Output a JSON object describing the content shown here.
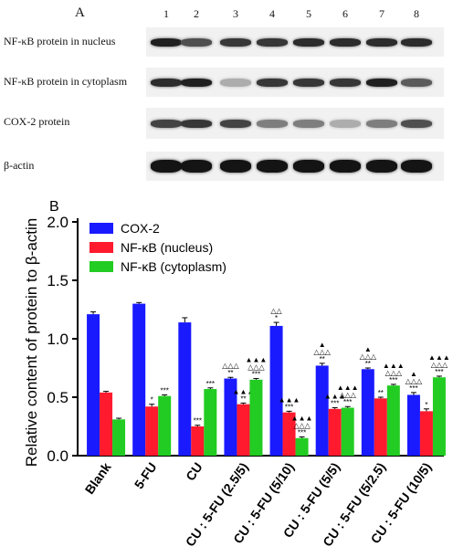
{
  "panelA": {
    "letter": "A",
    "lanes": [
      "1",
      "2",
      "3",
      "4",
      "5",
      "6",
      "7",
      "8"
    ],
    "rows": [
      {
        "label": "NF-κB protein in nucleus",
        "intensity": [
          0.95,
          0.75,
          0.85,
          0.85,
          0.9,
          0.9,
          0.9,
          0.9
        ]
      },
      {
        "label": "NF-κB protein in cytoplasm",
        "intensity": [
          0.9,
          0.95,
          0.35,
          0.85,
          0.85,
          0.85,
          0.95,
          0.7
        ]
      },
      {
        "label": "COX-2 protein",
        "intensity": [
          0.8,
          0.85,
          0.8,
          0.55,
          0.55,
          0.35,
          0.55,
          0.75
        ]
      },
      {
        "label": "β-actin",
        "intensity": [
          1,
          1,
          1,
          1,
          1,
          1,
          1,
          1
        ]
      }
    ]
  },
  "chart_data": {
    "panel_letter": "B",
    "type": "bar",
    "ylabel": "Relative content of protein to β-actin",
    "ylim": [
      0.0,
      2.0
    ],
    "yticks": [
      "0.0",
      "0.5",
      "1.0",
      "1.5",
      "2.0"
    ],
    "categories": [
      "Blank",
      "5-FU",
      "CU",
      "CU : 5-FU (2.5/5)",
      "CU : 5-FU (5/10)",
      "CU : 5-FU (5/5)",
      "CU : 5-FU (5/2.5)",
      "CU : 5-FU (10/5)"
    ],
    "legend_position": "top-left",
    "series": [
      {
        "name": "COX-2",
        "color": "#1a1aff",
        "values": [
          1.21,
          1.3,
          1.14,
          0.66,
          1.11,
          0.77,
          0.74,
          0.52
        ],
        "errors": [
          0.02,
          0.01,
          0.04,
          0.01,
          0.03,
          0.02,
          0.01,
          0.02
        ],
        "annotations": [
          [],
          [],
          [],
          [
            "△△△",
            "**"
          ],
          [
            "△△",
            "*"
          ],
          [
            "▲",
            "△△△",
            "**"
          ],
          [
            "▲",
            "△△△",
            "**"
          ],
          [
            "▲",
            "△△△",
            "***"
          ]
        ]
      },
      {
        "name": "NF-κB (nucleus)",
        "color": "#ff1a2e",
        "values": [
          0.54,
          0.42,
          0.25,
          0.44,
          0.37,
          0.4,
          0.49,
          0.38
        ],
        "errors": [
          0.01,
          0.02,
          0.01,
          0.01,
          0.01,
          0.01,
          0.01,
          0.02
        ],
        "annotations": [
          [],
          [
            "*"
          ],
          [
            "***"
          ],
          [
            "▲▲▲",
            "**"
          ],
          [
            "▲▲▲",
            "***"
          ],
          [
            "▲▲▲",
            "***"
          ],
          [
            "**"
          ],
          [
            "*"
          ]
        ]
      },
      {
        "name": "NF-κB (cytoplasm)",
        "color": "#22cc22",
        "values": [
          0.31,
          0.51,
          0.57,
          0.65,
          0.15,
          0.41,
          0.6,
          0.67
        ],
        "errors": [
          0.01,
          0.01,
          0.01,
          0.01,
          0.01,
          0.01,
          0.01,
          0.01
        ],
        "annotations": [
          [],
          [
            "***"
          ],
          [
            "***"
          ],
          [
            "▲▲▲",
            "△△△",
            "***"
          ],
          [
            "▲▲▲",
            "△△△",
            "***"
          ],
          [
            "▲▲▲",
            "△△△",
            "***"
          ],
          [
            "▲▲▲",
            "△△△",
            "***"
          ],
          [
            "▲▲▲",
            "△△△",
            "***"
          ]
        ]
      }
    ]
  }
}
